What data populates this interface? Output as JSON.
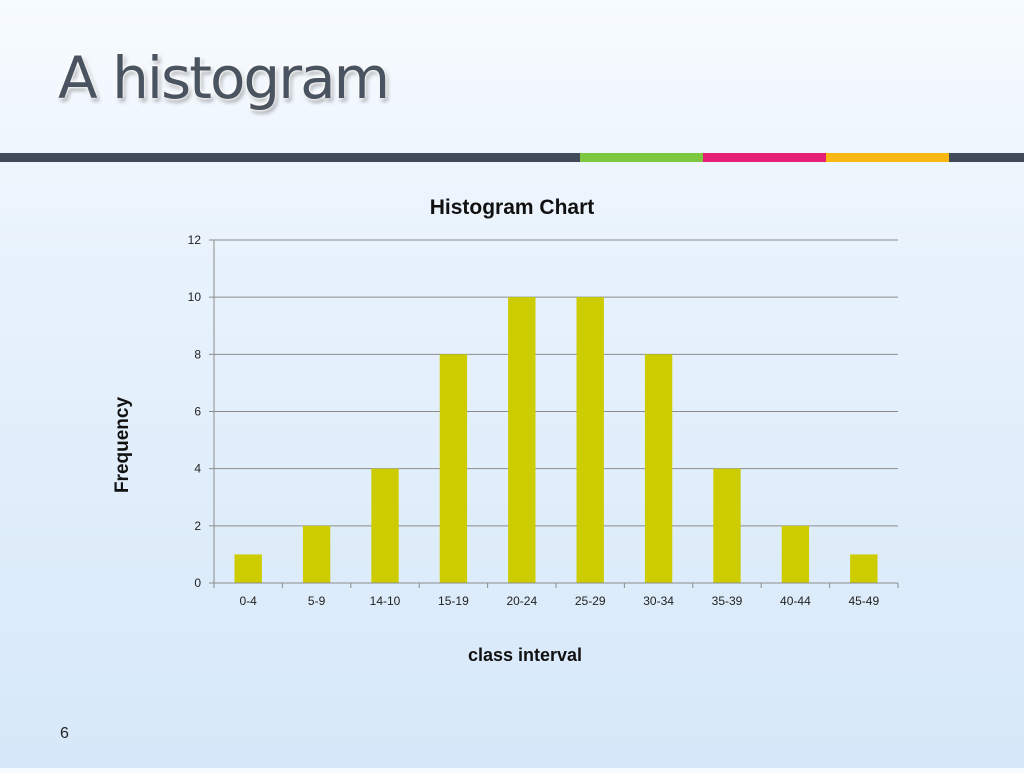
{
  "slide": {
    "title": "A histogram",
    "page_number": "6"
  },
  "colors": {
    "divider_base": "#404a58",
    "divider_accents": [
      "#7dc83e",
      "#e61f77",
      "#f8b811"
    ],
    "bar": "#cccc00",
    "grid": "#8c8c8c",
    "title_text": "#4a5360"
  },
  "chart_data": {
    "type": "bar",
    "title": "Histogram Chart",
    "xlabel": "class interval",
    "ylabel": "Frequency",
    "categories": [
      "0-4",
      "5-9",
      "14-10",
      "15-19",
      "20-24",
      "25-29",
      "30-34",
      "35-39",
      "40-44",
      "45-49"
    ],
    "values": [
      1,
      2,
      4,
      8,
      10,
      10,
      8,
      4,
      2,
      1
    ],
    "ylim": [
      0,
      12
    ],
    "yticks": [
      0,
      2,
      4,
      6,
      8,
      10,
      12
    ],
    "grid": true,
    "legend": "none"
  }
}
